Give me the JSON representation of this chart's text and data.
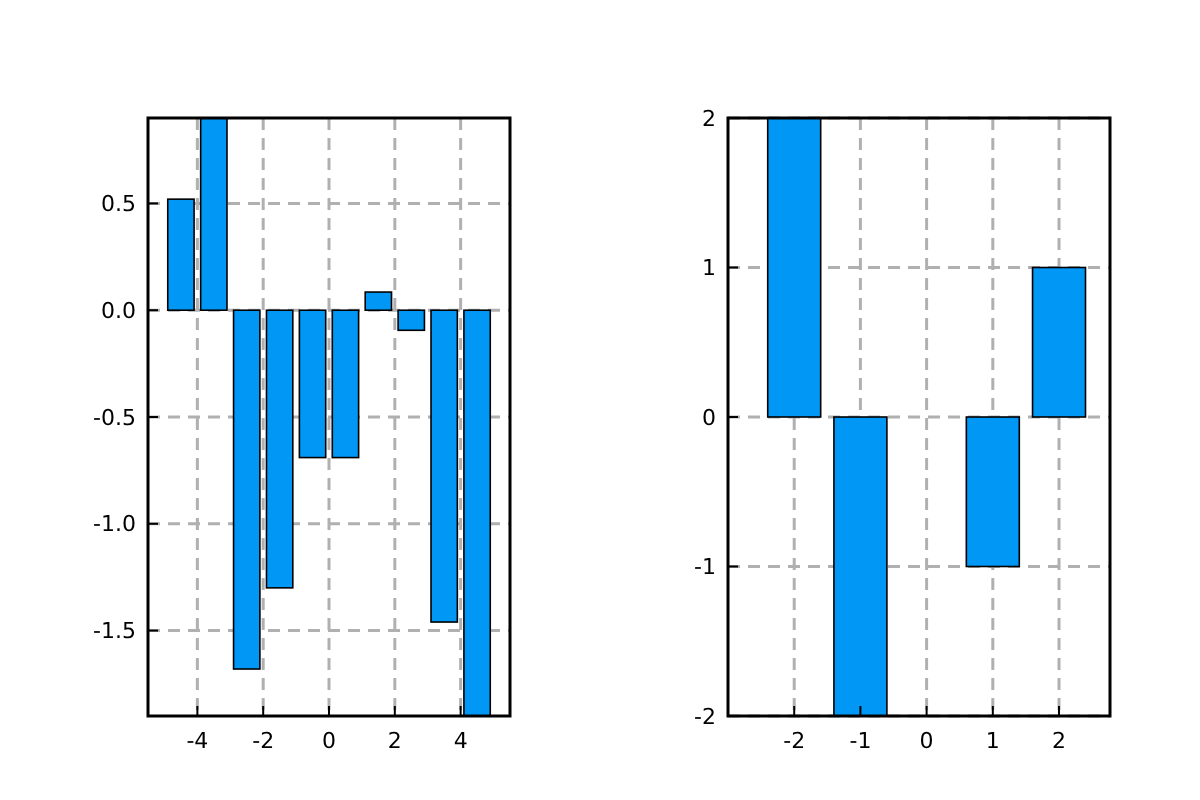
{
  "chart_data": [
    {
      "type": "bar",
      "x": [
        -4.5,
        -3.5,
        -2.5,
        -1.5,
        -0.5,
        0.5,
        1.5,
        2.5,
        3.5,
        4.5
      ],
      "values": [
        0.52,
        0.9,
        -1.68,
        -1.3,
        -0.69,
        -0.69,
        0.085,
        -0.094,
        -1.46,
        -1.9
      ],
      "color": "#0097f5",
      "xlim": [
        -5.5,
        5.5
      ],
      "ylim": [
        -1.9,
        0.9
      ],
      "xticks": [
        -4,
        -2,
        0,
        2,
        4
      ],
      "yticks": [
        {
          "value": -1.5,
          "label": "-1.5"
        },
        {
          "value": -1,
          "label": "-1.0"
        },
        {
          "value": -0.5,
          "label": "-0.5"
        },
        {
          "value": 0,
          "label": "0.0"
        },
        {
          "value": 0.5,
          "label": "0.5"
        }
      ],
      "grid": true
    },
    {
      "type": "bar",
      "x": [
        -2,
        -1,
        0,
        1,
        2
      ],
      "values": [
        2,
        -2,
        0,
        -1,
        1
      ],
      "color": "#0097f5",
      "xlim": [
        -3,
        2.77
      ],
      "ylim": [
        -2,
        2
      ],
      "xticks": [
        -2,
        -1,
        0,
        1,
        2
      ],
      "yticks": [
        -2,
        -1,
        0,
        1,
        2
      ],
      "grid": true
    }
  ]
}
